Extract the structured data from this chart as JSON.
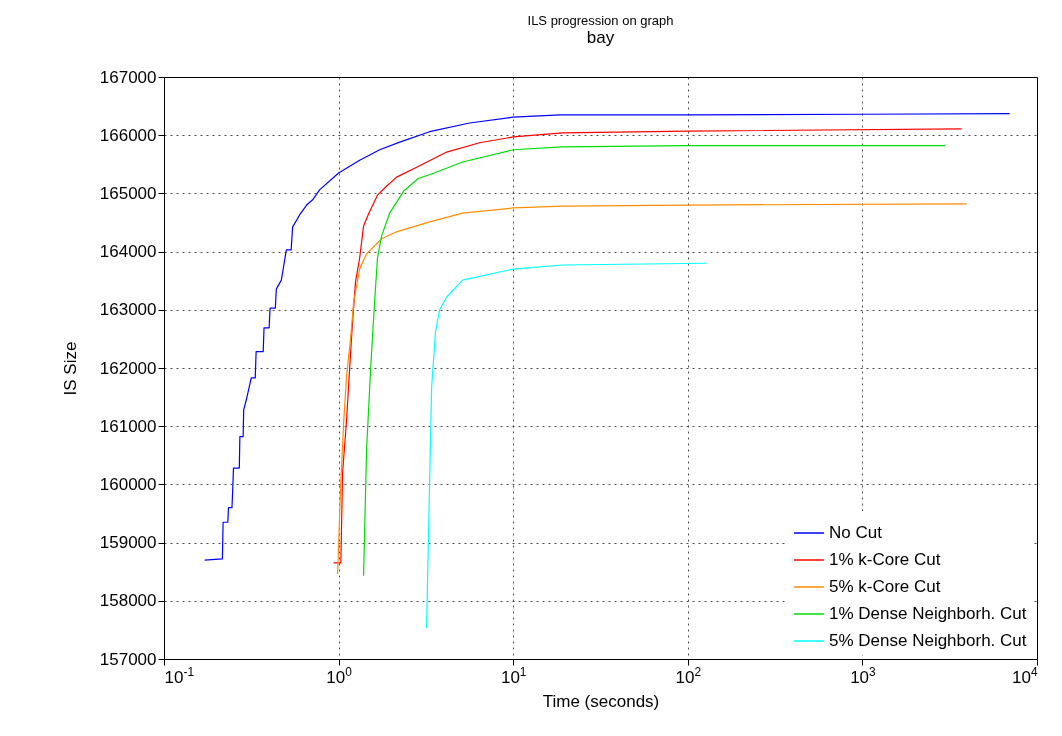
{
  "chart_data": {
    "type": "line",
    "title": "ILS progression on graph",
    "subtitle": "bay",
    "xlabel": "Time (seconds)",
    "ylabel": "IS Size",
    "log": "x",
    "grid": true,
    "legend": "bottom right",
    "line_style": "solid",
    "marker": "none",
    "xlim": [
      0.1,
      10000
    ],
    "xticks": [
      {
        "value": 0.1,
        "label": "10$^{-1}$"
      },
      {
        "value": 1,
        "label": "10$^{0}$"
      },
      {
        "value": 10,
        "label": "10$^{1}$"
      },
      {
        "value": 100,
        "label": "10$^{2}$"
      },
      {
        "value": 1000,
        "label": "10$^{3}$"
      },
      {
        "value": 10000,
        "label": "10$^{4}$"
      }
    ],
    "ylim": [
      157000,
      167000
    ],
    "yticks": [
      157000,
      158000,
      159000,
      160000,
      161000,
      162000,
      163000,
      164000,
      165000,
      166000,
      167000
    ],
    "series": [
      {
        "name": "No Cut",
        "color": "#0000ff",
        "x": [
          0.171,
          0.216,
          0.218,
          0.232,
          0.234,
          0.245,
          0.247,
          0.25,
          0.27,
          0.272,
          0.284,
          0.286,
          0.296,
          0.316,
          0.333,
          0.337,
          0.37,
          0.374,
          0.4,
          0.405,
          0.434,
          0.44,
          0.47,
          0.502,
          0.535,
          0.545,
          0.598,
          0.656,
          0.71,
          0.778,
          1,
          1.32,
          1.72,
          2.24,
          3.32,
          5.63,
          10,
          18.6,
          100,
          1000,
          6970
        ],
        "values": [
          158700,
          158720,
          159350,
          159350,
          159600,
          159600,
          159840,
          160280,
          160280,
          160820,
          160820,
          161280,
          161450,
          161830,
          161830,
          162280,
          162280,
          162690,
          162690,
          163030,
          163030,
          163360,
          163510,
          164030,
          164030,
          164420,
          164630,
          164800,
          164890,
          165060,
          165350,
          165570,
          165750,
          165880,
          166060,
          166210,
          166310,
          166350,
          166350,
          166360,
          166370
        ]
      },
      {
        "name": "1% k-Core Cut",
        "color": "#ff0000",
        "x": [
          0.936,
          1.03,
          1.054,
          1.11,
          1.156,
          1.2,
          1.25,
          1.32,
          1.39,
          1.49,
          1.67,
          1.86,
          2.15,
          2.8,
          4.16,
          6.42,
          10,
          19.2,
          100,
          3700
        ],
        "values": [
          158650,
          158650,
          160200,
          161090,
          161980,
          162760,
          163480,
          163890,
          164440,
          164660,
          164970,
          165110,
          165280,
          165450,
          165710,
          165870,
          165970,
          166040,
          166070,
          166110
        ]
      },
      {
        "name": "5% k-Core Cut",
        "color": "#ff8c00",
        "x": [
          0.987,
          1.027,
          1.068,
          1.111,
          1.171,
          1.219,
          1.319,
          1.446,
          1.763,
          2.15,
          3.32,
          5.13,
          10,
          19.2,
          100,
          3950
        ],
        "values": [
          158460,
          159960,
          161040,
          161860,
          162500,
          163130,
          163700,
          163960,
          164220,
          164340,
          164510,
          164660,
          164750,
          164780,
          164800,
          164820
        ]
      },
      {
        "name": "1% Dense Neighborh. Cut",
        "color": "#00dd00",
        "x": [
          1.39,
          1.446,
          1.525,
          1.607,
          1.67,
          1.763,
          1.96,
          2.36,
          2.87,
          3.32,
          5.13,
          10,
          19.2,
          100,
          2990
        ],
        "values": [
          158430,
          160590,
          161980,
          163130,
          163890,
          164270,
          164660,
          165040,
          165260,
          165320,
          165540,
          165750,
          165800,
          165820,
          165820
        ]
      },
      {
        "name": "5% Dense Neighborh. Cut",
        "color": "#00ffff",
        "x": [
          3.19,
          3.41,
          3.59,
          3.79,
          4.16,
          5.13,
          10,
          19.2,
          128
        ],
        "values": [
          157530,
          161670,
          162620,
          163000,
          163220,
          163510,
          163700,
          163770,
          163800
        ]
      }
    ]
  }
}
